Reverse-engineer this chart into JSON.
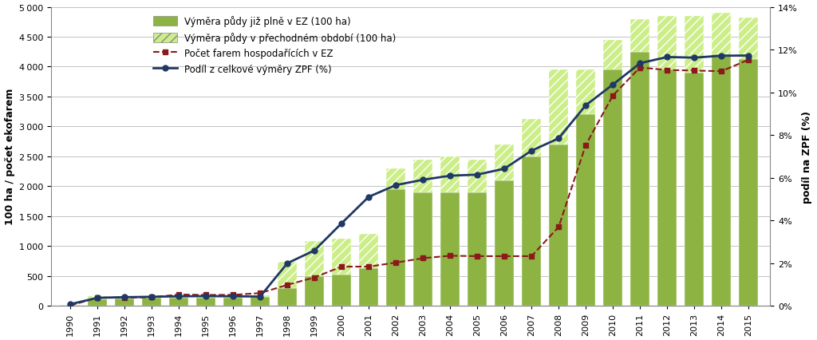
{
  "years": [
    1990,
    1991,
    1992,
    1993,
    1994,
    1995,
    1996,
    1997,
    1998,
    1999,
    2000,
    2001,
    2002,
    2003,
    2004,
    2005,
    2006,
    2007,
    2008,
    2009,
    2010,
    2011,
    2012,
    2013,
    2014,
    2015
  ],
  "bar_full": [
    3,
    110,
    120,
    130,
    140,
    140,
    140,
    150,
    300,
    500,
    520,
    630,
    1950,
    1900,
    1900,
    1900,
    2100,
    2500,
    2700,
    3200,
    3950,
    4250,
    3950,
    3900,
    4200,
    4120
  ],
  "bar_transition": [
    10,
    50,
    30,
    30,
    30,
    30,
    30,
    30,
    430,
    580,
    600,
    570,
    350,
    540,
    600,
    550,
    600,
    620,
    1250,
    750,
    500,
    550,
    900,
    950,
    700,
    700
  ],
  "farms": [
    3,
    135,
    135,
    141,
    187,
    181,
    182,
    211,
    348,
    473,
    654,
    654,
    721,
    795,
    836,
    829,
    829,
    829,
    1317,
    2689,
    3517,
    3985,
    3944,
    3934,
    3923,
    4115
  ],
  "zpf_pct": [
    0.07,
    0.37,
    0.4,
    0.42,
    0.44,
    0.45,
    0.44,
    0.43,
    1.99,
    2.59,
    3.86,
    5.1,
    5.65,
    5.9,
    6.09,
    6.14,
    6.42,
    7.26,
    7.84,
    9.39,
    10.36,
    11.36,
    11.65,
    11.62,
    11.71,
    11.72
  ],
  "bar_full_color": "#8DB443",
  "bar_transition_color_face": "#CCEE88",
  "line_farms_color": "#8B1A1A",
  "line_zpf_color": "#1F3864",
  "ylabel_left": "100 ha / počet ekofarem",
  "ylabel_right": "podíl na ZPF (%)",
  "ylim_left": [
    0,
    5000
  ],
  "ylim_right": [
    0,
    14
  ],
  "yticks_left": [
    0,
    500,
    1000,
    1500,
    2000,
    2500,
    3000,
    3500,
    4000,
    4500,
    5000
  ],
  "yticks_right": [
    0,
    2,
    4,
    6,
    8,
    10,
    12,
    14
  ],
  "legend_labels": [
    "Výměra půdy již plně v EZ (100 ha)",
    "Výměra půdy v přechodném období (100 ha)",
    "Počet farem hospodařících v EZ",
    "Podíl z celkové výměry ZPF (%)"
  ],
  "background_color": "#FFFFFF",
  "grid_color": "#AAAAAA",
  "tick_label_fontsize": 8,
  "axis_label_fontsize": 9,
  "bar_width": 0.7
}
